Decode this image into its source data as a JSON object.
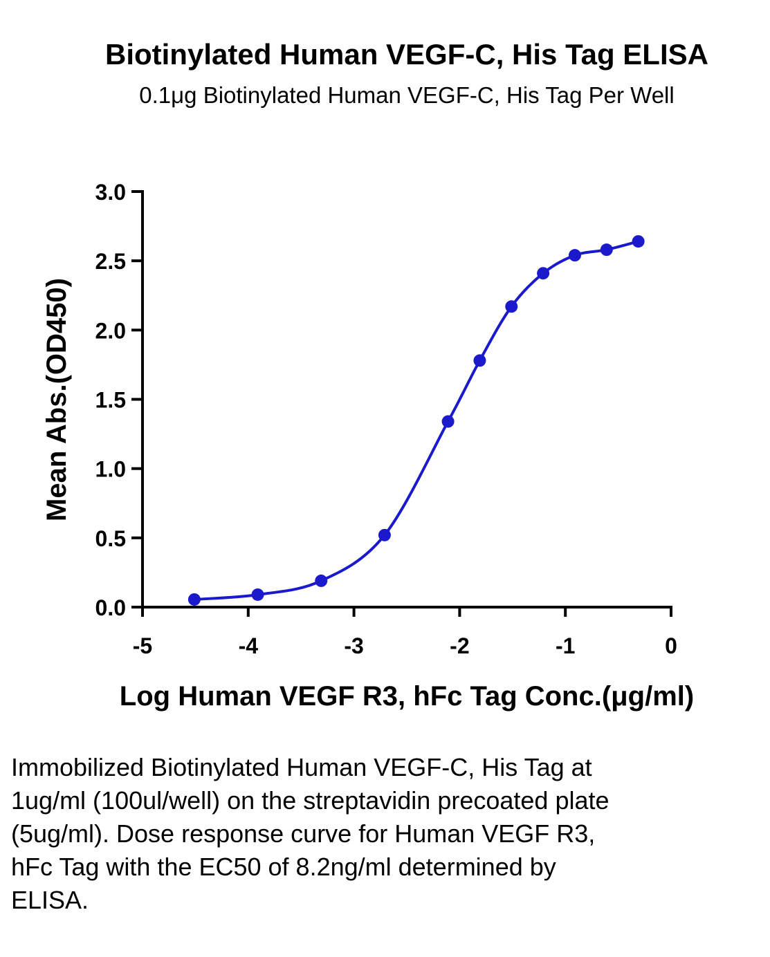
{
  "chart_data": {
    "type": "scatter",
    "title": "Biotinylated Human VEGF-C, His Tag ELISA",
    "subtitle": "0.1μg Biotinylated Human VEGF-C, His Tag Per Well",
    "xlabel": "Log Human VEGF R3, hFc Tag Conc.(μg/ml)",
    "ylabel": "Mean Abs.(OD450)",
    "xlim": [
      -5,
      0
    ],
    "ylim": [
      0,
      3.0
    ],
    "xticks": [
      -5,
      -4,
      -3,
      -2,
      -1,
      0
    ],
    "xtick_labels": [
      "-5",
      "-4",
      "-3",
      "-2",
      "-1",
      "0"
    ],
    "yticks": [
      0,
      0.5,
      1.0,
      1.5,
      2.0,
      2.5,
      3.0
    ],
    "ytick_labels": [
      "0.0",
      "0.5",
      "1.0",
      "1.5",
      "2.0",
      "2.5",
      "3.0"
    ],
    "grid": false,
    "series": [
      {
        "color": "#1a1acc",
        "fit": "four-parameter logistic",
        "x": [
          -4.51,
          -3.91,
          -3.31,
          -2.71,
          -2.11,
          -1.81,
          -1.51,
          -1.21,
          -0.91,
          -0.61,
          -0.31
        ],
        "y": [
          0.055,
          0.09,
          0.19,
          0.52,
          1.34,
          1.78,
          2.17,
          2.41,
          2.54,
          2.58,
          2.64
        ]
      }
    ]
  },
  "caption": "Immobilized Biotinylated Human VEGF-C, His Tag at 1ug/ml (100ul/well) on the streptavidin precoated plate (5ug/ml). Dose response curve for Human VEGF R3, hFc Tag with the EC50 of 8.2ng/ml determined by ELISA."
}
